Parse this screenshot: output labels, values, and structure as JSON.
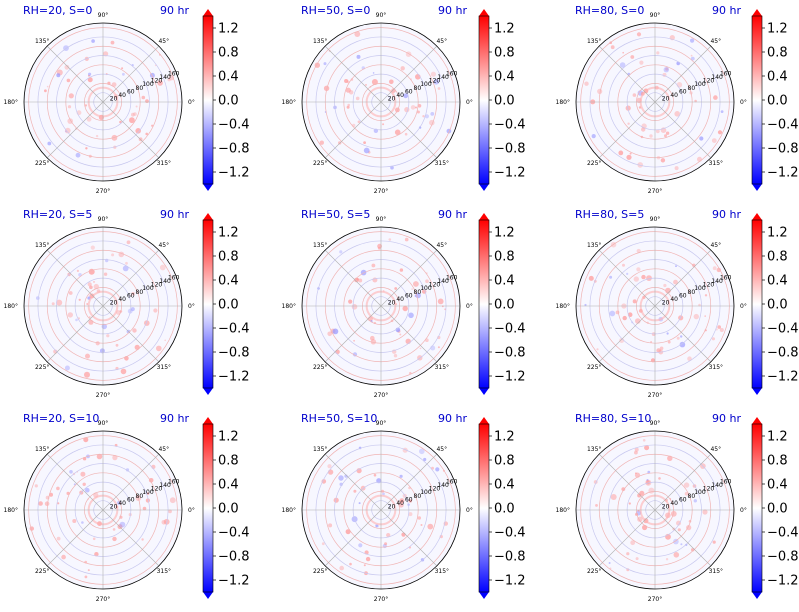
{
  "figure": {
    "time_label": "90 hr",
    "title_color": "#0000cc",
    "rings": [
      20,
      40,
      60,
      80,
      100,
      120,
      140,
      160
    ],
    "r_max": 170,
    "angle_labels": [
      "0°",
      "45°",
      "90°",
      "135°",
      "180°",
      "225°",
      "270°",
      "315°"
    ],
    "colorbar": {
      "ticks": [
        "1.2",
        "0.8",
        "0.4",
        "0.0",
        "−0.4",
        "−0.8",
        "−1.2"
      ],
      "tick_values": [
        1.2,
        0.8,
        0.4,
        0.0,
        -0.4,
        -0.8,
        -1.2
      ],
      "vmin": -1.4,
      "vmax": 1.4,
      "colormap": "bwr",
      "extend": "both"
    },
    "colors": {
      "red": "#ff0000",
      "blue": "#0000ff",
      "white": "#ffffff",
      "grid": "#b0b0b0",
      "ring_tint_red": "#f0b4b4",
      "ring_tint_blue": "#c8c8ef"
    }
  },
  "chart_data": [
    {
      "type": "heatmap",
      "projection": "polar",
      "title": "RH=20, S=0",
      "time": "90 hr",
      "rh": 20,
      "s": 0,
      "r_ticks": [
        20,
        40,
        60,
        80,
        100,
        120,
        140,
        160
      ],
      "theta_ticks_deg": [
        0,
        45,
        90,
        135,
        180,
        225,
        270,
        315
      ],
      "clim": [
        -1.4,
        1.4
      ],
      "colormap": "bwr"
    },
    {
      "type": "heatmap",
      "projection": "polar",
      "title": "RH=50, S=0",
      "time": "90 hr",
      "rh": 50,
      "s": 0,
      "r_ticks": [
        20,
        40,
        60,
        80,
        100,
        120,
        140,
        160
      ],
      "theta_ticks_deg": [
        0,
        45,
        90,
        135,
        180,
        225,
        270,
        315
      ],
      "clim": [
        -1.4,
        1.4
      ],
      "colormap": "bwr"
    },
    {
      "type": "heatmap",
      "projection": "polar",
      "title": "RH=80, S=0",
      "time": "90 hr",
      "rh": 80,
      "s": 0,
      "r_ticks": [
        20,
        40,
        60,
        80,
        100,
        120,
        140,
        160
      ],
      "theta_ticks_deg": [
        0,
        45,
        90,
        135,
        180,
        225,
        270,
        315
      ],
      "clim": [
        -1.4,
        1.4
      ],
      "colormap": "bwr"
    },
    {
      "type": "heatmap",
      "projection": "polar",
      "title": "RH=20, S=5",
      "time": "90 hr",
      "rh": 20,
      "s": 5,
      "r_ticks": [
        20,
        40,
        60,
        80,
        100,
        120,
        140,
        160
      ],
      "theta_ticks_deg": [
        0,
        45,
        90,
        135,
        180,
        225,
        270,
        315
      ],
      "clim": [
        -1.4,
        1.4
      ],
      "colormap": "bwr"
    },
    {
      "type": "heatmap",
      "projection": "polar",
      "title": "RH=50, S=5",
      "time": "90 hr",
      "rh": 50,
      "s": 5,
      "r_ticks": [
        20,
        40,
        60,
        80,
        100,
        120,
        140,
        160
      ],
      "theta_ticks_deg": [
        0,
        45,
        90,
        135,
        180,
        225,
        270,
        315
      ],
      "clim": [
        -1.4,
        1.4
      ],
      "colormap": "bwr"
    },
    {
      "type": "heatmap",
      "projection": "polar",
      "title": "RH=80, S=5",
      "time": "90 hr",
      "rh": 80,
      "s": 5,
      "r_ticks": [
        20,
        40,
        60,
        80,
        100,
        120,
        140,
        160
      ],
      "theta_ticks_deg": [
        0,
        45,
        90,
        135,
        180,
        225,
        270,
        315
      ],
      "clim": [
        -1.4,
        1.4
      ],
      "colormap": "bwr"
    },
    {
      "type": "heatmap",
      "projection": "polar",
      "title": "RH=20, S=10",
      "time": "90 hr",
      "rh": 20,
      "s": 10,
      "r_ticks": [
        20,
        40,
        60,
        80,
        100,
        120,
        140,
        160
      ],
      "theta_ticks_deg": [
        0,
        45,
        90,
        135,
        180,
        225,
        270,
        315
      ],
      "clim": [
        -1.4,
        1.4
      ],
      "colormap": "bwr"
    },
    {
      "type": "heatmap",
      "projection": "polar",
      "title": "RH=50, S=10",
      "time": "90 hr",
      "rh": 50,
      "s": 10,
      "r_ticks": [
        20,
        40,
        60,
        80,
        100,
        120,
        140,
        160
      ],
      "theta_ticks_deg": [
        0,
        45,
        90,
        135,
        180,
        225,
        270,
        315
      ],
      "clim": [
        -1.4,
        1.4
      ],
      "colormap": "bwr"
    },
    {
      "type": "heatmap",
      "projection": "polar",
      "title": "RH=80, S=10",
      "time": "90 hr",
      "rh": 80,
      "s": 10,
      "r_ticks": [
        20,
        40,
        60,
        80,
        100,
        120,
        140,
        160
      ],
      "theta_ticks_deg": [
        0,
        45,
        90,
        135,
        180,
        225,
        270,
        315
      ],
      "clim": [
        -1.4,
        1.4
      ],
      "colormap": "bwr"
    }
  ]
}
